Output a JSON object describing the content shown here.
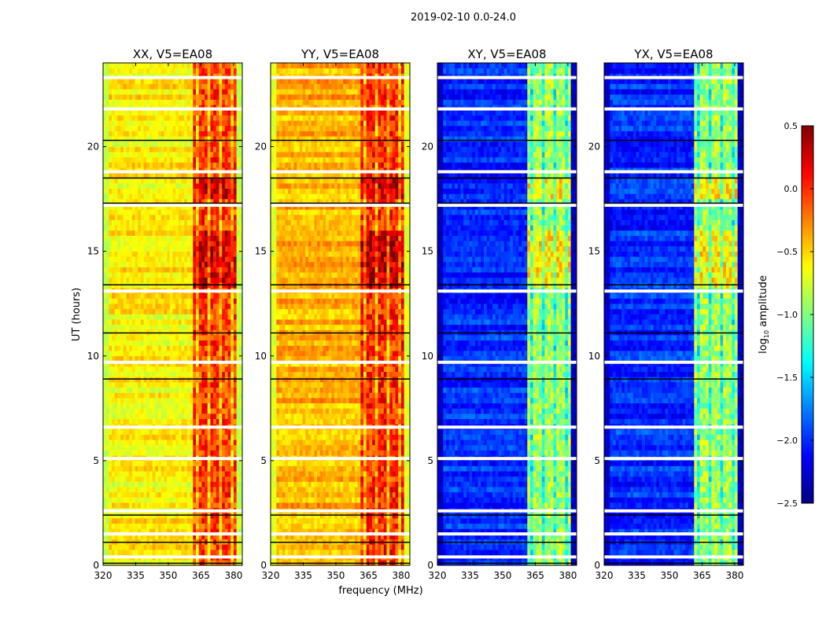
{
  "chart_data": {
    "type": "heatmap",
    "suptitle": "2019-02-10 0.0-24.0",
    "xlabel": "frequency (MHz)",
    "ylabel": "UT (hours)",
    "xlim": [
      320,
      384
    ],
    "ylim": [
      0,
      24
    ],
    "xticks": [
      "320",
      "335",
      "350",
      "365",
      "380"
    ],
    "xtick_values": [
      320,
      335,
      350,
      365,
      380
    ],
    "yticks": [
      "0",
      "5",
      "10",
      "15",
      "20"
    ],
    "ytick_values": [
      0,
      5,
      10,
      15,
      20
    ],
    "panels": [
      {
        "title": "XX, V5=EA08",
        "baseline_log_amp": -0.6,
        "band_log_amp": -0.05,
        "edge_log_amp": -0.8
      },
      {
        "title": "YY, V5=EA08",
        "baseline_log_amp": -0.4,
        "band_log_amp": 0.0,
        "edge_log_amp": -0.7
      },
      {
        "title": "XY, V5=EA08",
        "baseline_log_amp": -2.0,
        "band_log_amp": -0.9,
        "edge_log_amp": -2.3
      },
      {
        "title": "YX, V5=EA08",
        "baseline_log_amp": -2.0,
        "band_log_amp": -0.9,
        "edge_log_amp": -2.3
      }
    ],
    "rfi_band_mhz": [
      361,
      381
    ],
    "missing_data_hours": [
      0.4,
      1.5,
      2.6,
      5.1,
      6.6,
      9.7,
      13.1,
      17.2,
      18.8,
      21.8,
      23.3
    ],
    "flag_line_hours": [
      0.1,
      1.1,
      2.4,
      8.9,
      11.1,
      13.4,
      17.3,
      18.5,
      20.3
    ],
    "colorbar": {
      "label": "log10 amplitude",
      "label_main": "log",
      "label_sub": "10",
      "label_rest": " amplitude",
      "range": [
        -2.5,
        0.5
      ],
      "ticks": [
        "0.5",
        "0.0",
        "−0.5",
        "−1.0",
        "−1.5",
        "−2.0",
        "−2.5"
      ],
      "tick_values": [
        0.5,
        0.0,
        -0.5,
        -1.0,
        -1.5,
        -2.0,
        -2.5
      ],
      "colormap": "jet"
    }
  }
}
